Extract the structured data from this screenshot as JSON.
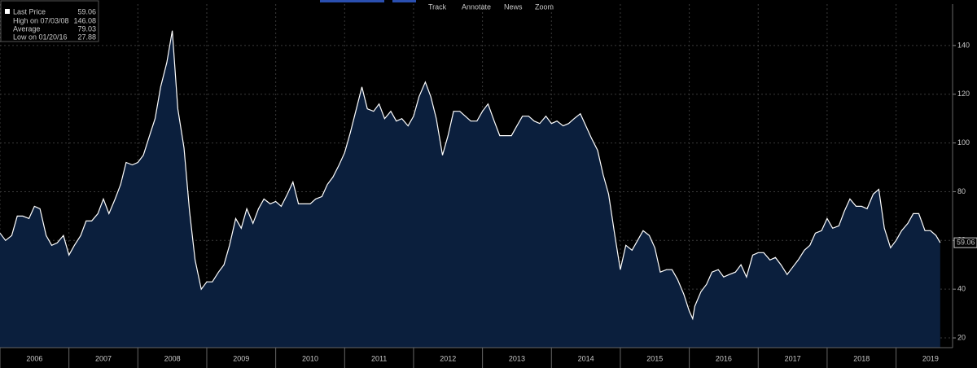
{
  "toolbar": {
    "items": [
      "Track",
      "Annotate",
      "News",
      "Zoom"
    ]
  },
  "chart_data": {
    "type": "area",
    "legend": {
      "items": [
        {
          "label": "Last Price",
          "value": 59.06
        },
        {
          "label": "High on 07/03/08",
          "value": 146.08
        },
        {
          "label": "Average",
          "value": 79.03
        },
        {
          "label": "Low on 01/20/16",
          "value": 27.88
        }
      ]
    },
    "series": [
      {
        "name": "Last Price",
        "color": "#ffffff",
        "fill": "#0b1f3d",
        "x": [
          2006,
          2006.08,
          2006.17,
          2006.25,
          2006.33,
          2006.42,
          2006.5,
          2006.58,
          2006.67,
          2006.75,
          2006.83,
          2006.92,
          2007,
          2007.08,
          2007.17,
          2007.25,
          2007.33,
          2007.42,
          2007.5,
          2007.58,
          2007.67,
          2007.75,
          2007.83,
          2007.92,
          2008,
          2008.08,
          2008.17,
          2008.25,
          2008.33,
          2008.42,
          2008.5,
          2008.58,
          2008.67,
          2008.75,
          2008.83,
          2008.92,
          2009,
          2009.08,
          2009.17,
          2009.25,
          2009.33,
          2009.42,
          2009.5,
          2009.58,
          2009.67,
          2009.75,
          2009.83,
          2009.92,
          2010,
          2010.08,
          2010.17,
          2010.25,
          2010.33,
          2010.42,
          2010.5,
          2010.58,
          2010.67,
          2010.75,
          2010.83,
          2010.92,
          2011,
          2011.08,
          2011.17,
          2011.25,
          2011.33,
          2011.42,
          2011.5,
          2011.58,
          2011.67,
          2011.75,
          2011.83,
          2011.92,
          2012,
          2012.08,
          2012.17,
          2012.25,
          2012.33,
          2012.42,
          2012.5,
          2012.58,
          2012.67,
          2012.75,
          2012.83,
          2012.92,
          2013,
          2013.08,
          2013.17,
          2013.25,
          2013.33,
          2013.42,
          2013.5,
          2013.58,
          2013.67,
          2013.75,
          2013.83,
          2013.92,
          2014,
          2014.08,
          2014.17,
          2014.25,
          2014.33,
          2014.42,
          2014.5,
          2014.58,
          2014.67,
          2014.75,
          2014.83,
          2014.92,
          2015,
          2015.08,
          2015.17,
          2015.25,
          2015.33,
          2015.42,
          2015.5,
          2015.58,
          2015.67,
          2015.75,
          2015.83,
          2015.92,
          2016,
          2016.05,
          2016.08,
          2016.17,
          2016.25,
          2016.33,
          2016.42,
          2016.5,
          2016.58,
          2016.67,
          2016.75,
          2016.83,
          2016.92,
          2017,
          2017.08,
          2017.17,
          2017.25,
          2017.33,
          2017.42,
          2017.5,
          2017.58,
          2017.67,
          2017.75,
          2017.83,
          2017.92,
          2018,
          2018.08,
          2018.17,
          2018.25,
          2018.33,
          2018.42,
          2018.5,
          2018.58,
          2018.67,
          2018.75,
          2018.83,
          2018.92,
          2019,
          2019.08,
          2019.17,
          2019.25,
          2019.33,
          2019.42,
          2019.5,
          2019.58,
          2019.64
        ],
        "values": [
          63,
          60,
          62,
          70,
          70,
          69,
          74,
          73,
          62,
          58,
          59,
          62,
          54,
          58,
          62,
          68,
          68,
          71,
          77,
          71,
          77,
          83,
          92,
          91,
          92,
          95,
          103,
          110,
          123,
          133,
          146.08,
          114,
          98,
          72,
          52,
          40,
          43,
          43,
          47,
          50,
          58,
          69,
          65,
          73,
          67,
          73,
          77,
          75,
          76,
          74,
          79,
          84,
          75,
          75,
          75,
          77,
          78,
          83,
          86,
          91,
          96,
          104,
          114,
          123,
          114,
          113,
          116,
          110,
          113,
          109,
          110,
          107,
          111,
          119,
          125,
          119,
          110,
          95,
          103,
          113,
          113,
          111,
          109,
          109,
          113,
          116,
          109,
          103,
          103,
          103,
          107,
          111,
          111,
          109,
          108,
          111,
          108,
          109,
          107,
          108,
          110,
          112,
          107,
          102,
          97,
          87,
          79,
          62,
          48,
          58,
          56,
          60,
          64,
          62,
          57,
          47,
          48,
          48,
          44,
          38,
          31,
          27.88,
          33,
          39,
          42,
          47,
          48,
          45,
          46,
          47,
          50,
          45,
          54,
          55,
          55,
          52,
          53,
          50,
          46,
          49,
          52,
          56,
          58,
          63,
          64,
          69,
          65,
          66,
          72,
          77,
          74,
          74,
          73,
          79,
          81,
          65,
          57,
          60,
          64,
          67,
          71,
          71,
          64,
          64,
          62,
          59.06
        ]
      }
    ],
    "xlim": [
      2006,
      2019.82
    ],
    "xticks": [
      2006,
      2007,
      2008,
      2009,
      2010,
      2011,
      2012,
      2013,
      2014,
      2015,
      2016,
      2017,
      2018,
      2019
    ],
    "ylim": [
      16,
      157
    ],
    "yticks": [
      20,
      40,
      60,
      80,
      100,
      120,
      140
    ],
    "grid": true
  }
}
